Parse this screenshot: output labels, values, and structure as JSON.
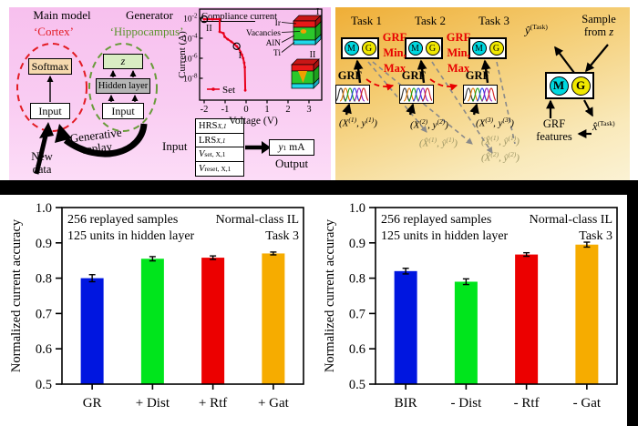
{
  "panel_a": {
    "main_model": "Main model",
    "cortex": "‘Cortex’",
    "generator": "Generator",
    "hippocampus": "‘Hippocampus’",
    "softmax": "Softmax",
    "input_main": "Input",
    "z": "z",
    "hidden_layer": "Hidden layer",
    "input_gen": "Input",
    "new_data_lines": [
      "New",
      "data"
    ],
    "generative_replay_lines": [
      "Generative",
      "replay"
    ],
    "io": {
      "input_label": "Input",
      "rows": [
        {
          "base": "HRS",
          "sub": "X,1"
        },
        {
          "base": "LRS",
          "sub": "X,1"
        },
        {
          "base": "V",
          "sub": "set, X,1"
        },
        {
          "base": "V",
          "sub": "reset, X,1"
        }
      ],
      "output": {
        "base": "y",
        "sub": "1",
        "unit": "mA"
      },
      "output_label": "Output"
    }
  },
  "panel_b": {
    "tasks": [
      {
        "title": "Task 1",
        "sample": {
          "a": "(X",
          "asup": "(1)",
          "b": ", y",
          "bsup": "(1)",
          "c": ")"
        }
      },
      {
        "title": "Task 2",
        "sample": {
          "a": "(X",
          "asup": "(2)",
          "b": ", y",
          "bsup": "(2)",
          "c": ")"
        },
        "replays": [
          {
            "a": "(X̂",
            "asup": "(1)",
            "b": ", ŷ",
            "bsup": "(1)",
            "c": ")"
          }
        ]
      },
      {
        "title": "Task 3",
        "sample": {
          "a": "(X",
          "asup": "(3)",
          "b": ", y",
          "bsup": "(3)",
          "c": ")"
        },
        "replays": [
          {
            "a": "(X̂",
            "asup": "(1)",
            "b": ", ŷ",
            "bsup": "(1)",
            "c": ")"
          },
          {
            "a": "(X̂",
            "asup": "(2)",
            "b": ", ŷ",
            "bsup": "(2)",
            "c": ")"
          }
        ]
      }
    ],
    "m": "M",
    "g": "G",
    "grf": "GRF",
    "grf_minmax_lines": [
      "GRF",
      "Min,",
      "Max"
    ],
    "y_hat": {
      "base": "ŷ",
      "sup": "(Task)"
    },
    "sample_from_z": {
      "line1": "Sample",
      "line2_pre": "from ",
      "line2_z": "z"
    },
    "grf_features": {
      "line1": "GRF",
      "line2": "features"
    },
    "x_hat": {
      "base": "x̂",
      "sup": "(Task)"
    }
  },
  "chart_data": [
    {
      "type": "line",
      "title": "Compliance current",
      "xlabel": "Voltage (V)",
      "ylabel": "Current (A)",
      "legend": "Set",
      "line_color": "#e8001c",
      "xlim": [
        -2.25,
        3.6
      ],
      "x_ticks": [
        -2,
        -1,
        0,
        1,
        2,
        3
      ],
      "y_tick_exponents": [
        -2,
        -4,
        -6,
        -8
      ],
      "points_v_logi": [
        [
          -2,
          -2.1
        ],
        [
          -1.6,
          -2.1
        ],
        [
          -1.26,
          -2.1
        ],
        [
          -1.26,
          -3.35
        ],
        [
          -1.08,
          -3.5
        ],
        [
          -1.02,
          -3.85
        ],
        [
          -0.88,
          -4.1
        ],
        [
          -0.7,
          -4.35
        ],
        [
          -0.55,
          -4.6
        ],
        [
          -0.45,
          -4.8
        ],
        [
          -0.35,
          -5.05
        ],
        [
          -0.27,
          -5.35
        ],
        [
          -0.2,
          -5.65
        ],
        [
          -0.14,
          -6.0
        ],
        [
          -0.09,
          -6.45
        ],
        [
          -0.06,
          -6.9
        ],
        [
          -0.04,
          -9.2
        ]
      ],
      "marker_points": [
        {
          "v": -2,
          "logi": -2.1,
          "label": "II"
        },
        {
          "v": -0.45,
          "logi": -4.8,
          "label": "I"
        }
      ],
      "inset": {
        "label_i": "I",
        "label_ii": "II",
        "layers": [
          "Ir",
          "Vacancies",
          "AlN",
          "Ti"
        ]
      }
    },
    {
      "type": "bar",
      "categories": [
        "GR",
        "+ Dist",
        "+ Rtf",
        "+ Gat"
      ],
      "values": [
        0.8,
        0.855,
        0.858,
        0.87
      ],
      "errors": [
        0.01,
        0.006,
        0.005,
        0.004
      ],
      "bar_colors": [
        "#0016e0",
        "#00e51c",
        "#ec0000",
        "#f6ac00"
      ],
      "ylabel": "Normalized current accuracy",
      "ylim": [
        0.5,
        1.0
      ],
      "y_ticks": [
        0.5,
        0.6,
        0.7,
        0.8,
        0.9,
        1.0
      ],
      "annotation_left": [
        "256 replayed samples",
        "125 units in hidden layer"
      ],
      "annotation_right": [
        "Normal-class IL",
        "Task 3"
      ]
    },
    {
      "type": "bar",
      "categories": [
        "BIR",
        "- Dist",
        "- Rtf",
        "- Gat"
      ],
      "values": [
        0.82,
        0.79,
        0.867,
        0.895
      ],
      "errors": [
        0.008,
        0.008,
        0.005,
        0.007
      ],
      "bar_colors": [
        "#0016e0",
        "#00e51c",
        "#ec0000",
        "#f6ac00"
      ],
      "ylabel": "Normalized current accuracy",
      "ylim": [
        0.5,
        1.0
      ],
      "y_ticks": [
        0.5,
        0.6,
        0.7,
        0.8,
        0.9,
        1.0
      ],
      "annotation_left": [
        "256 replayed samples",
        "125 units in hidden layer"
      ],
      "annotation_right": [
        "Normal-class IL",
        "Task 3"
      ]
    }
  ]
}
